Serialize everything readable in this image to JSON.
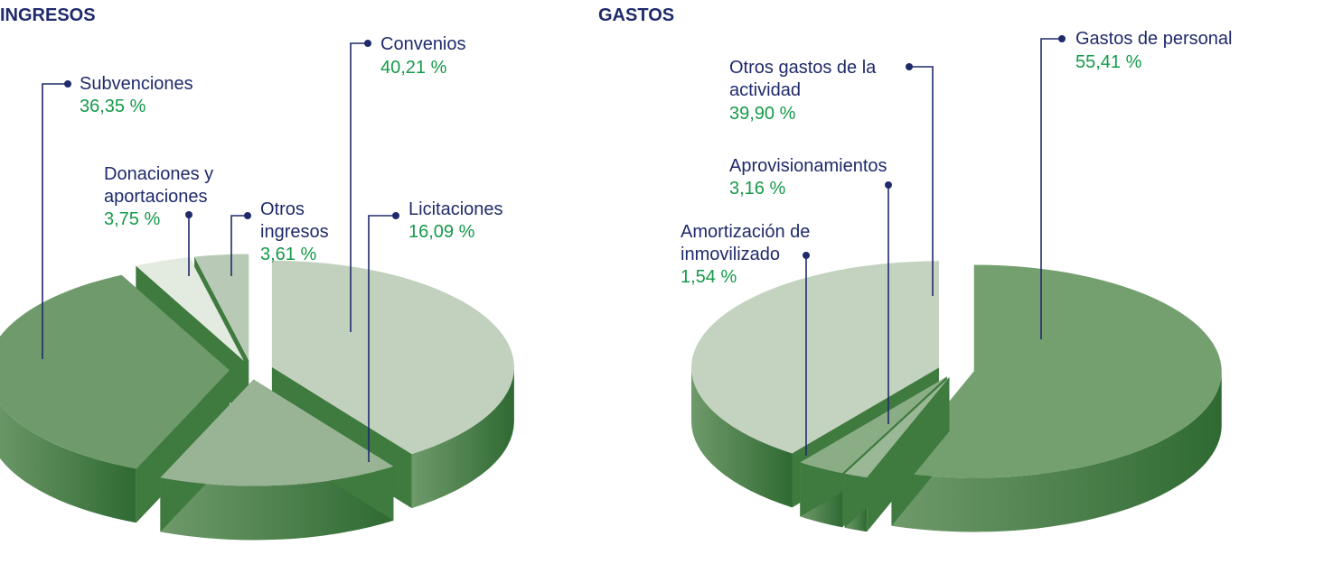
{
  "chart_data": [
    {
      "type": "pie",
      "title": "INGRESOS",
      "series": [
        {
          "name": "Convenios",
          "value": 40.21,
          "display": "40,21 %",
          "color": "#c1d1be"
        },
        {
          "name": "Licitaciones",
          "value": 16.09,
          "display": "16,09 %",
          "color": "#98b494"
        },
        {
          "name": "Subvenciones",
          "value": 36.35,
          "display": "36,35 %",
          "color": "#6f9a6b"
        },
        {
          "name": "Donaciones y aportaciones",
          "value": 3.75,
          "display": "3,75 %",
          "color": "#e3ebe1"
        },
        {
          "name": "Otros ingresos",
          "value": 3.61,
          "display": "3,61 %",
          "color": "#b8cab5"
        }
      ]
    },
    {
      "type": "pie",
      "title": "GASTOS",
      "series": [
        {
          "name": "Gastos de personal",
          "value": 55.41,
          "display": "55,41 %",
          "color": "#74a070"
        },
        {
          "name": "Amortización de inmovilizado",
          "value": 1.54,
          "display": "1,54 %",
          "color": "#9ab896"
        },
        {
          "name": "Aprovisionamientos",
          "value": 3.16,
          "display": "3,16 %",
          "color": "#8aad86"
        },
        {
          "name": "Otros gastos de la actividad",
          "value": 39.9,
          "display": "39,90 %",
          "color": "#c3d3c0"
        }
      ]
    }
  ],
  "labels": {
    "ingresos": {
      "convenios": {
        "line1": "Convenios",
        "value": "40,21 %"
      },
      "licitaciones": {
        "line1": "Licitaciones",
        "value": "16,09 %"
      },
      "subvenciones": {
        "line1": "Subvenciones",
        "value": "36,35 %"
      },
      "donaciones": {
        "line1": "Donaciones y",
        "line2": "aportaciones",
        "value": "3,75 %"
      },
      "otros": {
        "line1": "Otros",
        "line2": "ingresos",
        "value": "3,61 %"
      }
    },
    "gastos": {
      "personal": {
        "line1": "Gastos de personal",
        "value": "55,41 %"
      },
      "otros": {
        "line1": "Otros gastos de la",
        "line2": "actividad",
        "value": "39,90 %"
      },
      "aprov": {
        "line1": "Aprovisionamientos",
        "value": "3,16 %"
      },
      "amort": {
        "line1": "Amortización de",
        "line2": "inmovilizado",
        "value": "1,54 %"
      }
    }
  }
}
